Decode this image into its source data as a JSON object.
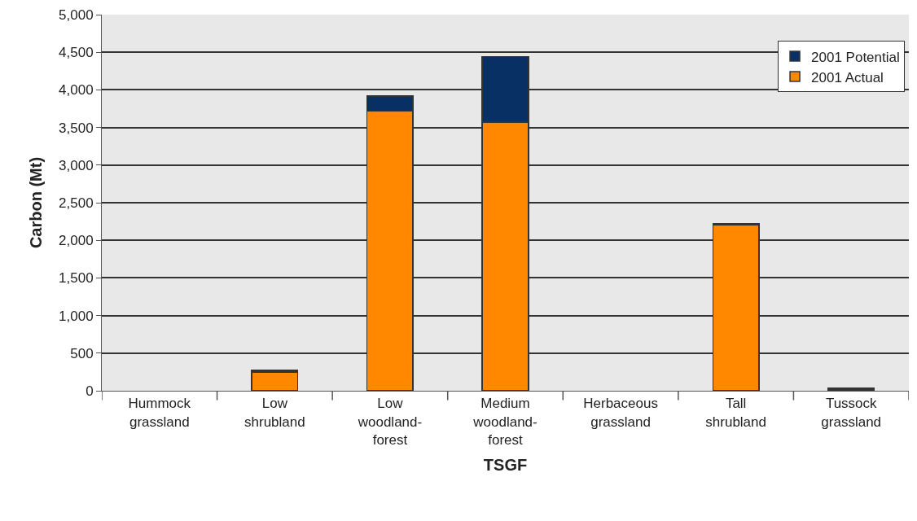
{
  "chart_data": {
    "type": "bar",
    "stacked": true,
    "xlabel": "TSGF",
    "ylabel": "Carbon (Mt)",
    "categories": [
      "Hummock grassland",
      "Low shrubland",
      "Low woodland-forest",
      "Medium woodland-forest",
      "Herbaceous grassland",
      "Tall shrubland",
      "Tussock grassland"
    ],
    "series": [
      {
        "name": "2001 Actual",
        "color": "#ff8800",
        "values": [
          null,
          250,
          3720,
          3570,
          null,
          2200,
          10
        ]
      },
      {
        "name": "2001 Potential",
        "color": "#083065",
        "values": [
          null,
          20,
          200,
          870,
          null,
          20,
          20
        ]
      }
    ],
    "ylim": [
      0,
      5000
    ],
    "yticks": [
      {
        "value": 0,
        "label": "0"
      },
      {
        "value": 500,
        "label": "500"
      },
      {
        "value": 1000,
        "label": "1,000"
      },
      {
        "value": 1500,
        "label": "1,500"
      },
      {
        "value": 2000,
        "label": "2,000"
      },
      {
        "value": 2500,
        "label": "2,500"
      },
      {
        "value": 3000,
        "label": "3,000"
      },
      {
        "value": 3500,
        "label": "3,500"
      },
      {
        "value": 4000,
        "label": "4,000"
      },
      {
        "value": 4500,
        "label": "4,500"
      },
      {
        "value": 5000,
        "label": "5,000"
      }
    ],
    "grid": "y",
    "legend": "top right"
  }
}
